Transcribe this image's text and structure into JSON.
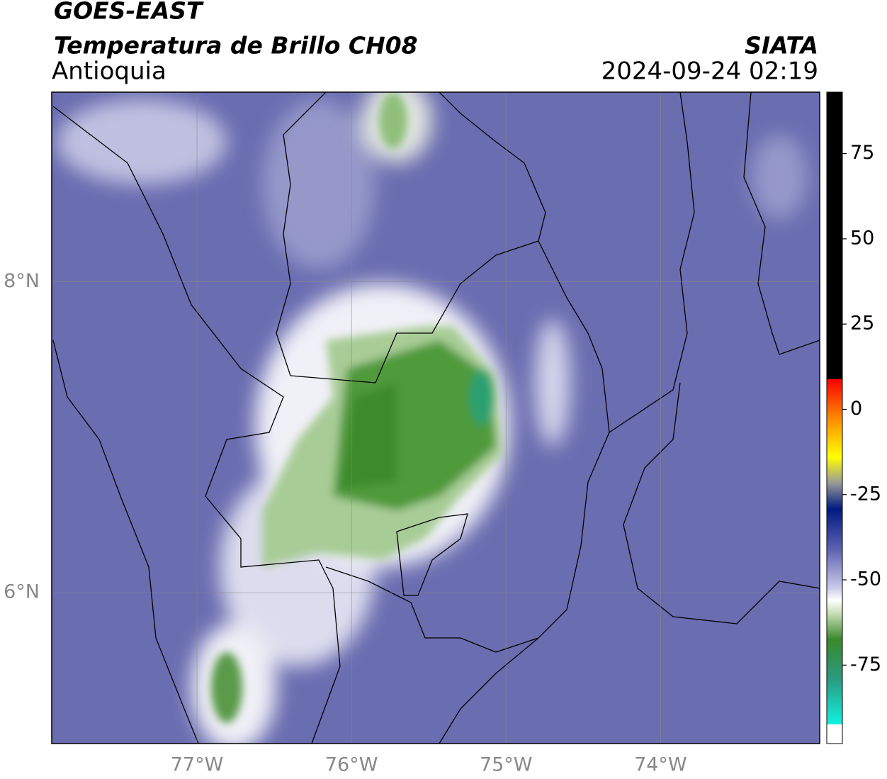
{
  "header": {
    "title": "GOES-EAST",
    "subtitle": "Temperatura de Brillo CH08",
    "region": "Antioquia",
    "source": "SIATA",
    "datetime": "2024-09-24 02:19"
  },
  "map": {
    "lonlim": [
      -77.94,
      -72.97
    ],
    "latlim": [
      5.03,
      9.22
    ],
    "lon_ticks": [
      {
        "value": -77,
        "label": "77°W"
      },
      {
        "value": -76,
        "label": "76°W"
      },
      {
        "value": -75,
        "label": "75°W"
      },
      {
        "value": -74,
        "label": "74°W"
      }
    ],
    "lat_ticks": [
      {
        "value": 8,
        "label": "8°N"
      },
      {
        "value": 6,
        "label": "6°N"
      }
    ],
    "grid": true
  },
  "colorbar": {
    "lim": [
      -98,
      93
    ],
    "ticks": [
      75,
      50,
      25,
      0,
      -25,
      -50,
      -75
    ]
  }
}
